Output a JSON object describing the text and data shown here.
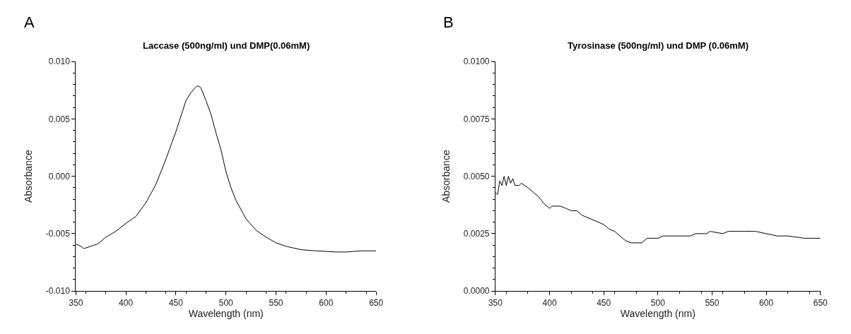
{
  "chart_data": [
    {
      "type": "line",
      "title": "Laccase (500ng/ml) und DMP(0.06mM)",
      "xlabel": "Wavelength (nm)",
      "ylabel": "Absorbance",
      "annotations": [
        "A"
      ],
      "x": [
        350,
        355,
        358,
        365,
        372,
        380,
        390,
        400,
        410,
        420,
        430,
        440,
        450,
        460,
        465,
        470,
        472,
        475,
        480,
        485,
        490,
        495,
        500,
        505,
        510,
        520,
        530,
        540,
        550,
        560,
        575,
        590,
        610,
        620,
        635,
        650
      ],
      "series": [
        {
          "color": "#000000",
          "values": [
            -0.0059,
            -0.0061,
            -0.0063,
            -0.0061,
            -0.0059,
            -0.0053,
            -0.0048,
            -0.0041,
            -0.0035,
            -0.0023,
            -0.0007,
            0.0015,
            0.0039,
            0.0066,
            0.0073,
            0.0078,
            0.0079,
            0.0077,
            0.0066,
            0.0054,
            0.0038,
            0.0023,
            0.0004,
            -0.001,
            -0.0021,
            -0.0037,
            -0.0047,
            -0.0053,
            -0.0058,
            -0.0061,
            -0.0064,
            -0.0065,
            -0.0066,
            -0.0066,
            -0.0065,
            -0.0065
          ]
        }
      ],
      "xlim": [
        350,
        650
      ],
      "xticks": [
        350,
        400,
        450,
        500,
        550,
        600,
        650
      ],
      "ylim": [
        -0.01,
        0.01
      ],
      "yticks": [
        {
          "value": -0.01,
          "label": "-0.010"
        },
        {
          "value": -0.005,
          "label": "-0.005"
        },
        {
          "value": 0,
          "label": "0.000"
        },
        {
          "value": 0.005,
          "label": "0.005"
        },
        {
          "value": 0.01,
          "label": "0.010"
        }
      ],
      "marker": "none",
      "line_style": "solid"
    },
    {
      "type": "line",
      "title": "Tyrosinase (500ng/ml) und DMP (0.06mM)",
      "xlabel": "Wavelength (nm)",
      "ylabel": "Absorbance",
      "annotations": [
        "B"
      ],
      "x": [
        350,
        352,
        354,
        356,
        358,
        360,
        362,
        364,
        366,
        368,
        372,
        374,
        377,
        380,
        385,
        390,
        395,
        400,
        402,
        410,
        415,
        420,
        425,
        430,
        440,
        450,
        455,
        460,
        465,
        470,
        475,
        485,
        490,
        500,
        505,
        508,
        520,
        530,
        535,
        545,
        548,
        560,
        565,
        580,
        590,
        600,
        610,
        620,
        635,
        650
      ],
      "series": [
        {
          "color": "#000000",
          "values": [
            0.0043,
            0.0042,
            0.0048,
            0.0046,
            0.005,
            0.0046,
            0.005,
            0.0047,
            0.0049,
            0.0046,
            0.0046,
            0.0047,
            0.0046,
            0.0045,
            0.0043,
            0.0041,
            0.0038,
            0.0036,
            0.0037,
            0.0037,
            0.0036,
            0.0035,
            0.0035,
            0.0033,
            0.0031,
            0.0029,
            0.0027,
            0.0026,
            0.0024,
            0.0022,
            0.0021,
            0.0021,
            0.0023,
            0.0023,
            0.0024,
            0.0024,
            0.0024,
            0.0024,
            0.0025,
            0.0025,
            0.0026,
            0.0025,
            0.0026,
            0.0026,
            0.0026,
            0.0025,
            0.0024,
            0.0024,
            0.0023,
            0.0023
          ]
        }
      ],
      "xlim": [
        350,
        650
      ],
      "xticks": [
        350,
        400,
        450,
        500,
        550,
        600,
        650
      ],
      "ylim": [
        0,
        0.01
      ],
      "yticks": [
        {
          "value": 0,
          "label": "0.0000"
        },
        {
          "value": 0.0025,
          "label": "0.0025"
        },
        {
          "value": 0.005,
          "label": "0.0050"
        },
        {
          "value": 0.0075,
          "label": "0.0075"
        },
        {
          "value": 0.01,
          "label": "0.0100"
        }
      ],
      "marker": "none",
      "line_style": "solid"
    }
  ]
}
